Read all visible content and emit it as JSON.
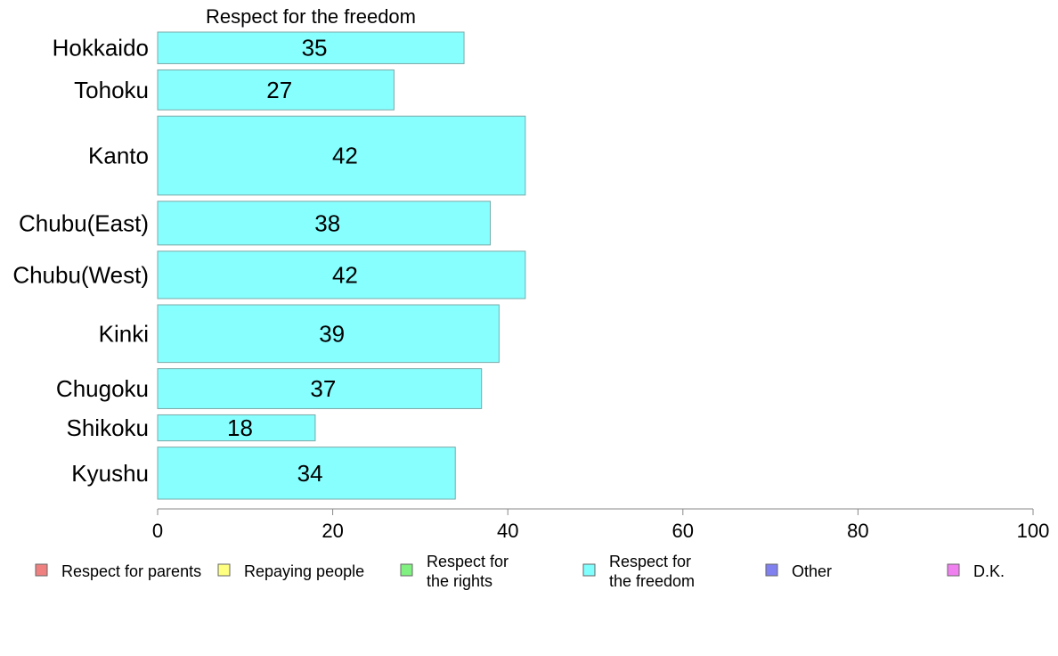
{
  "chart_data": {
    "type": "bar",
    "orientation": "horizontal",
    "title": "Respect for the freedom",
    "categories": [
      "Hokkaido",
      "Tohoku",
      "Kanto",
      "Chubu(East)",
      "Chubu(West)",
      "Kinki",
      "Chugoku",
      "Shikoku",
      "Kyushu"
    ],
    "relative_bar_widths": [
      3.4,
      4.3,
      8.5,
      4.7,
      5.1,
      6.2,
      4.3,
      2.8,
      5.6
    ],
    "series": [
      {
        "name": "Respect for the freedom",
        "color": "#88ffff",
        "values": [
          35,
          27,
          42,
          38,
          42,
          39,
          37,
          18,
          34
        ]
      }
    ],
    "xlim": [
      0,
      100
    ],
    "xticks": [
      0,
      20,
      40,
      60,
      80,
      100
    ],
    "xlabel": "",
    "ylabel": "",
    "grid": false,
    "legend_position": "bottom",
    "legend": [
      {
        "label": [
          "Respect for parents"
        ],
        "color": "#f08080"
      },
      {
        "label": [
          "Repaying people"
        ],
        "color": "#ffff80"
      },
      {
        "label": [
          "Respect for",
          "the rights"
        ],
        "color": "#80f080"
      },
      {
        "label": [
          "Respect for",
          "the freedom"
        ],
        "color": "#80ffff"
      },
      {
        "label": [
          "Other"
        ],
        "color": "#8080f0"
      },
      {
        "label": [
          "D.K."
        ],
        "color": "#f080f0"
      }
    ]
  }
}
